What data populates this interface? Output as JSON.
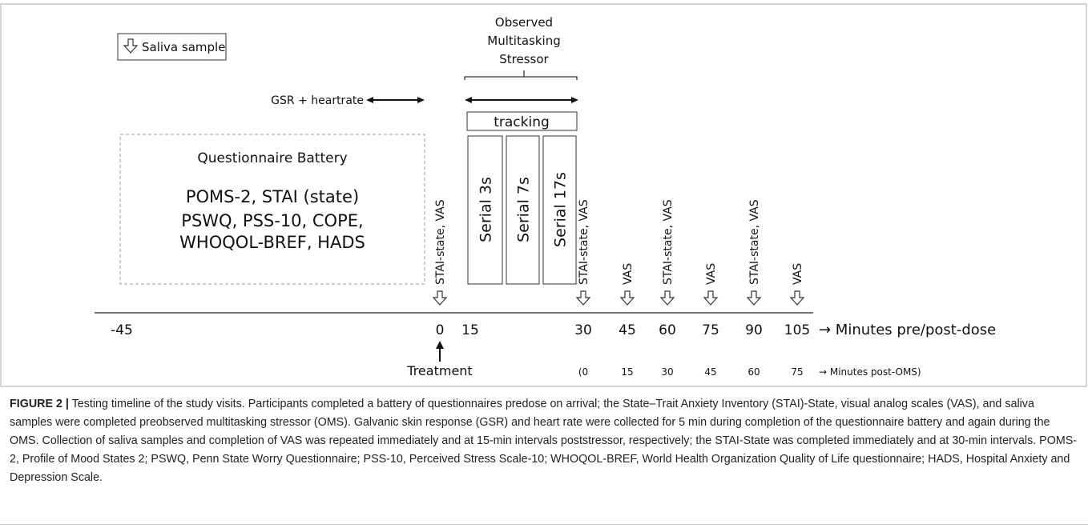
{
  "legend": {
    "label": "Saliva sample"
  },
  "oms": {
    "title_lines": [
      "Observed",
      "Multitasking",
      "Stressor"
    ],
    "tracking": "tracking",
    "tasks": [
      "Serial 3s",
      "Serial 7s",
      "Serial 17s"
    ]
  },
  "gsr": "GSR + heartrate",
  "questionnaire": {
    "title": "Questionnaire Battery",
    "lines": [
      "POMS-2, STAI (state)",
      "PSWQ, PSS-10, COPE,",
      "WHOQOL-BREF, HADS"
    ]
  },
  "measures": [
    "STAI-state, VAS",
    "STAI-state, VAS",
    "VAS",
    "STAI-state, VAS",
    "VAS",
    "STAI-state, VAS",
    "VAS"
  ],
  "axis": {
    "ticks": [
      "-45",
      "0",
      "15",
      "30",
      "45",
      "60",
      "75",
      "90",
      "105"
    ],
    "label": "→ Minutes pre/post-dose"
  },
  "treatment": "Treatment",
  "post_oms": {
    "ticks": [
      "(0",
      "15",
      "30",
      "45",
      "60",
      "75"
    ],
    "label": "→ Minutes post-OMS)"
  },
  "caption": {
    "lead": "FIGURE 2 |",
    "text": "Testing timeline of the study visits. Participants completed a battery of questionnaires predose on arrival; the State–Trait Anxiety Inventory (STAI)-State, visual analog scales (VAS), and saliva samples were completed preobserved multitasking stressor (OMS). Galvanic skin response (GSR) and heart rate were collected for 5 min during completion of the questionnaire battery and again during the OMS. Collection of saliva samples and completion of VAS was repeated immediately and at 15-min intervals poststressor, respectively; the STAI-State was completed immediately and at 30-min intervals. POMS-2, Profile of Mood States 2; PSWQ, Penn State Worry Questionnaire; PSS-10, Perceived Stress Scale-10; WHOQOL-BREF, World Health Organization Quality of Life questionnaire; HADS, Hospital Anxiety and Depression Scale."
  }
}
